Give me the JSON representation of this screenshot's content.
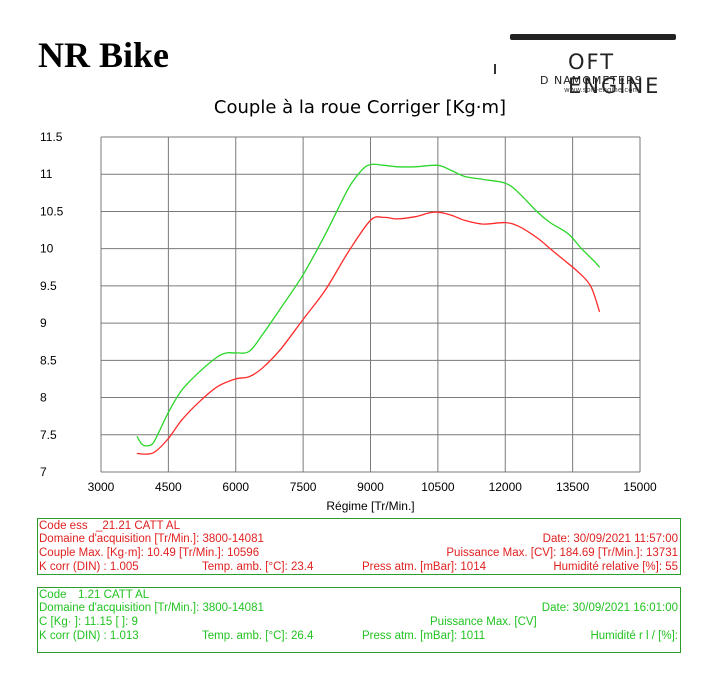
{
  "brand": {
    "title": "NR Bike"
  },
  "logo": {
    "name": "OFT ENGINE",
    "subtitle": "D  NAMOMETERS",
    "url": "www.soft-engine.com"
  },
  "chart_data": {
    "type": "line",
    "title": "Couple à la roue Corriger [Kg·m]",
    "xlabel": "Régime [Tr/Min.]",
    "ylabel": "",
    "xlim": [
      3000,
      15000
    ],
    "ylim": [
      7,
      11.5
    ],
    "xticks": [
      3000,
      4500,
      6000,
      7500,
      9000,
      10500,
      12000,
      13500,
      15000
    ],
    "yticks": [
      7,
      7.5,
      8,
      8.5,
      9,
      9.5,
      10,
      10.5,
      11,
      11.5
    ],
    "xtick_labels": [
      "3000",
      "4500",
      "6000",
      "7500",
      "9000",
      "10500",
      "12000",
      "13500",
      "15000"
    ],
    "ytick_labels": [
      "7",
      "7.5",
      "8",
      "8.5",
      "9",
      "9.5",
      "10",
      "10.5",
      "11",
      "11.5"
    ],
    "grid": true,
    "series": [
      {
        "color": "#ff2a2a",
        "x": [
          3800,
          4000,
          4200,
          4500,
          4800,
          5200,
          5600,
          6000,
          6300,
          6600,
          7000,
          7500,
          8000,
          8500,
          9000,
          9300,
          9600,
          10000,
          10300,
          10500,
          10800,
          11100,
          11500,
          12000,
          12300,
          12700,
          13000,
          13300,
          13600,
          13900,
          14100
        ],
        "y": [
          7.25,
          7.24,
          7.27,
          7.45,
          7.7,
          7.95,
          8.15,
          8.25,
          8.28,
          8.4,
          8.65,
          9.05,
          9.45,
          9.95,
          10.38,
          10.42,
          10.4,
          10.43,
          10.48,
          10.49,
          10.45,
          10.38,
          10.33,
          10.35,
          10.3,
          10.15,
          10.0,
          9.85,
          9.7,
          9.5,
          9.15
        ]
      },
      {
        "color": "#2ad62a",
        "x": [
          3800,
          3900,
          4000,
          4150,
          4300,
          4500,
          4800,
          5200,
          5600,
          5800,
          6000,
          6300,
          6600,
          7000,
          7500,
          8000,
          8500,
          8800,
          9000,
          9300,
          9600,
          10000,
          10500,
          10800,
          11100,
          11500,
          12000,
          12300,
          12700,
          13000,
          13400,
          13700,
          14000,
          14100
        ],
        "y": [
          7.48,
          7.38,
          7.35,
          7.38,
          7.55,
          7.8,
          8.1,
          8.35,
          8.55,
          8.6,
          8.6,
          8.62,
          8.85,
          9.2,
          9.65,
          10.2,
          10.8,
          11.05,
          11.13,
          11.12,
          11.1,
          11.1,
          11.12,
          11.05,
          10.97,
          10.93,
          10.88,
          10.75,
          10.5,
          10.35,
          10.2,
          10.0,
          9.82,
          9.75
        ]
      }
    ]
  },
  "info1": {
    "code_label": "Code ess",
    "code_value": "  _21.21 CATT AL     ",
    "domaine": "Domaine d'acquisition [Tr/Min.]: 3800-14081",
    "date": "Date: 30/09/2021   11:57:00",
    "couple_max": "Couple Max. [Kg·m]: 10.49   [Tr/Min.]: 10596",
    "puissance_max": "Puissance Max. [CV]: 184.69   [Tr/Min.]: 13731",
    "k_corr": "K corr  (DIN) : 1.005",
    "temp": "Temp. amb. [°C]: 23.4",
    "press": "Press atm. [mBar]: 1014",
    "humidite": "Humidité relative [%]: 55"
  },
  "info2": {
    "code_label": "Code",
    "code_value": "    1.21 CATT AL   ",
    "domaine": "Domaine d'acquisition [Tr/Min.]: 3800-14081",
    "date": "Date: 30/09/2021   16:01:00",
    "couple_max": "C      [Kg·    ]: 11.15   [        ]: 9",
    "puissance_max": "Puissance Max. [CV]",
    "k_corr": "K corr  (DIN) : 1.013",
    "temp": "Temp. amb. [°C]: 26.4",
    "press": "Press atm. [mBar]: 1011",
    "humidite": "Humidité r  l  /   [%]:"
  }
}
